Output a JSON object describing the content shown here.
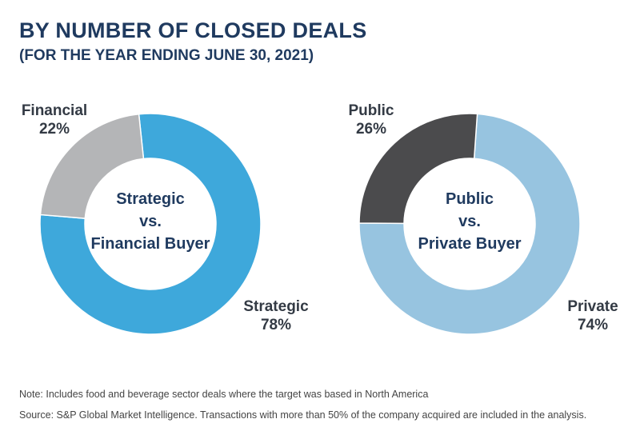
{
  "header": {
    "title": "BY NUMBER OF CLOSED DEALS",
    "subtitle": "(FOR THE YEAR ENDING JUNE 30, 2021)"
  },
  "chart_data": [
    {
      "type": "pie",
      "donut": true,
      "center_lines": [
        "Strategic",
        "vs.",
        "Financial Buyer"
      ],
      "slices": [
        {
          "label": "Strategic",
          "value": 78,
          "value_label": "78%",
          "color": "#3ea8db"
        },
        {
          "label": "Financial",
          "value": 22,
          "value_label": "22%",
          "color": "#b4b5b7"
        }
      ]
    },
    {
      "type": "pie",
      "donut": true,
      "center_lines": [
        "Public",
        "vs.",
        "Private Buyer"
      ],
      "slices": [
        {
          "label": "Private",
          "value": 74,
          "value_label": "74%",
          "color": "#97c4e0"
        },
        {
          "label": "Public",
          "value": 26,
          "value_label": "26%",
          "color": "#4b4b4d"
        }
      ]
    }
  ],
  "notes": {
    "note": "Note: Includes food and beverage sector deals where the target was based in North America",
    "source": "Source: S&P Global Market Intelligence. Transactions with more than 50% of the company acquired are included in the analysis."
  }
}
